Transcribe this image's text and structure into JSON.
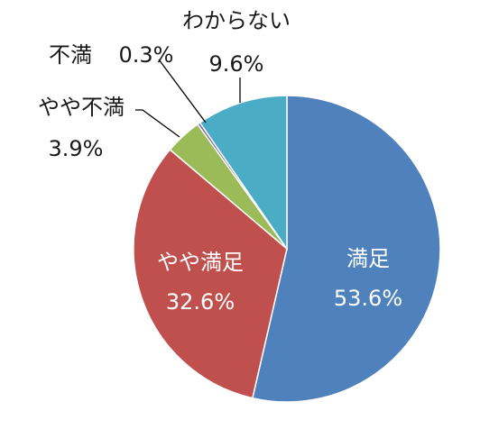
{
  "chart_data": {
    "type": "pie",
    "title": "",
    "start_angle_deg": 0,
    "direction": "clockwise",
    "slices": [
      {
        "label": "満足",
        "value": 53.6,
        "value_label": "53.6%",
        "color": "#4F81BD",
        "label_position": "inside"
      },
      {
        "label": "やや満足",
        "value": 32.6,
        "value_label": "32.6%",
        "color": "#C0504D",
        "label_position": "inside"
      },
      {
        "label": "やや不満",
        "value": 3.9,
        "value_label": "3.9%",
        "color": "#9BBB59",
        "label_position": "outside"
      },
      {
        "label": "不満",
        "value": 0.3,
        "value_label": "0.3%",
        "color": "#8064A2",
        "label_position": "outside"
      },
      {
        "label": "わからない",
        "value": 9.6,
        "value_label": "9.6%",
        "color": "#4BACC6",
        "label_position": "outside"
      }
    ]
  }
}
